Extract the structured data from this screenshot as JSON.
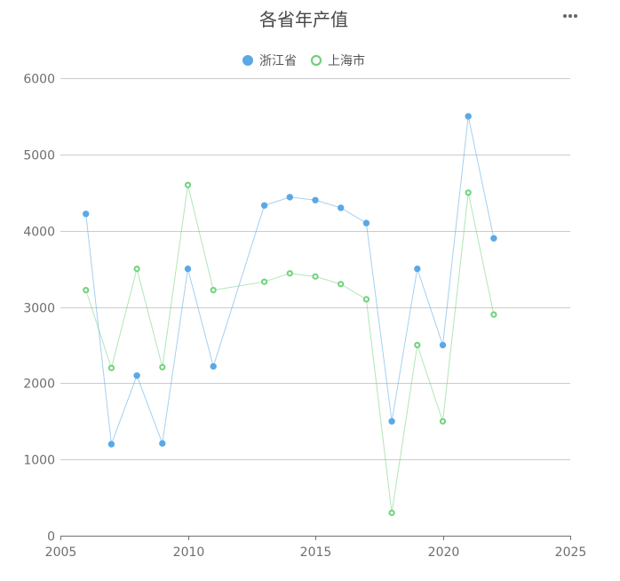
{
  "chart_data": {
    "type": "line",
    "title": "各省年产值",
    "xlabel": "",
    "ylabel": "",
    "xlim": [
      2005,
      2025
    ],
    "ylim": [
      0,
      6000
    ],
    "x_ticks": [
      2005,
      2010,
      2015,
      2020,
      2025
    ],
    "y_ticks": [
      0,
      1000,
      2000,
      3000,
      4000,
      5000,
      6000
    ],
    "grid": "horizontal",
    "legend_position": "top-center",
    "series": [
      {
        "name": "浙江省",
        "color": "#5aa9e6",
        "marker": "filled-circle",
        "points": [
          [
            2006,
            4220
          ],
          [
            2007,
            1200
          ],
          [
            2008,
            2100
          ],
          [
            2009,
            1210
          ],
          [
            2010,
            3500
          ],
          [
            2011,
            2220
          ],
          [
            2013,
            4330
          ],
          [
            2014,
            4440
          ],
          [
            2015,
            4400
          ],
          [
            2016,
            4300
          ],
          [
            2017,
            4100
          ],
          [
            2018,
            1500
          ],
          [
            2019,
            3500
          ],
          [
            2020,
            2500
          ],
          [
            2021,
            5500
          ],
          [
            2022,
            3900
          ]
        ]
      },
      {
        "name": "上海市",
        "color": "#6fd27a",
        "marker": "hollow-circle",
        "points": [
          [
            2006,
            3220
          ],
          [
            2007,
            2200
          ],
          [
            2008,
            3500
          ],
          [
            2009,
            2210
          ],
          [
            2010,
            4600
          ],
          [
            2011,
            3220
          ],
          [
            2013,
            3330
          ],
          [
            2014,
            3440
          ],
          [
            2015,
            3400
          ],
          [
            2016,
            3300
          ],
          [
            2017,
            3100
          ],
          [
            2018,
            300
          ],
          [
            2019,
            2500
          ],
          [
            2020,
            1500
          ],
          [
            2021,
            4500
          ],
          [
            2022,
            2900
          ]
        ]
      }
    ]
  },
  "toolbar": {
    "more_icon": "more-horizontal-icon",
    "icon_color": "#666666"
  }
}
